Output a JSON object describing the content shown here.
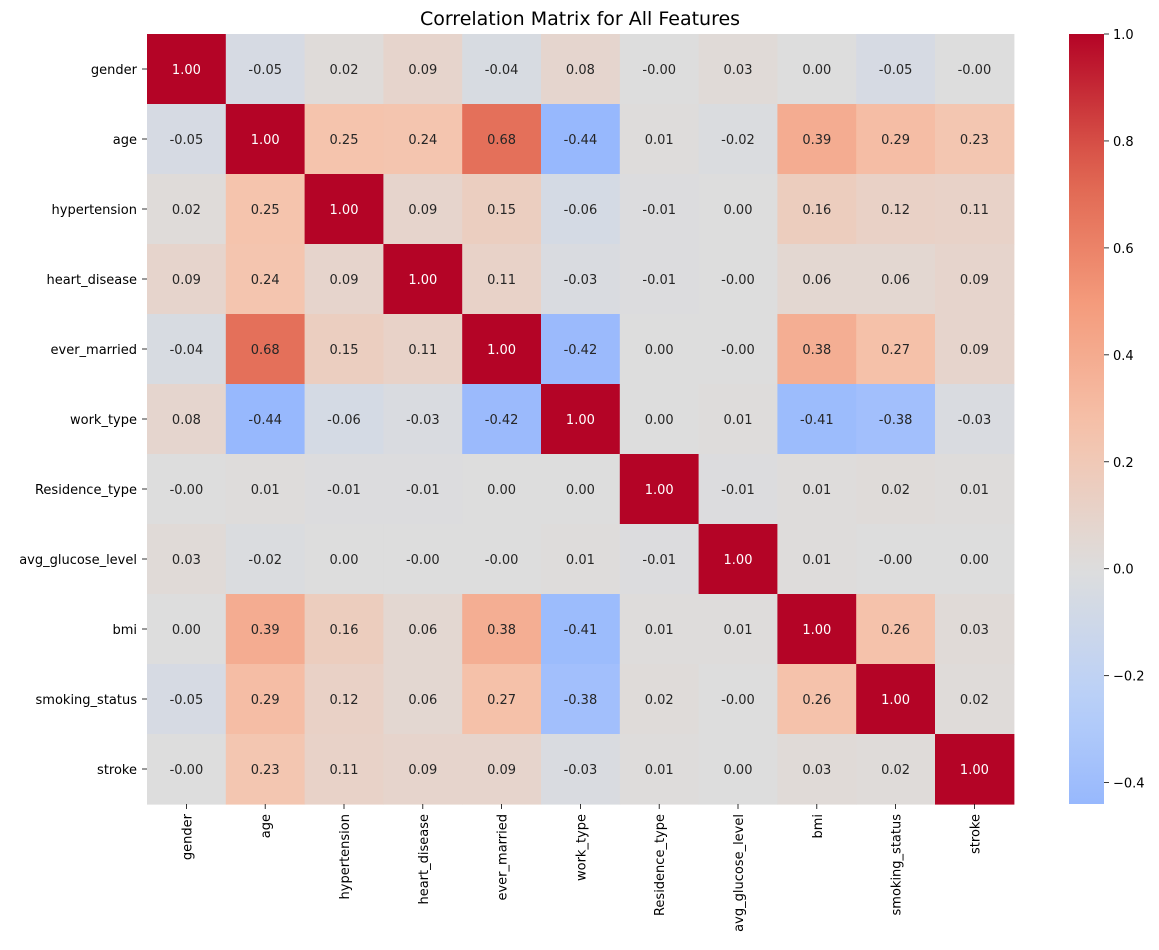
{
  "chart_data": {
    "type": "heatmap",
    "title": "Correlation Matrix for All Features",
    "xlabel": "",
    "ylabel": "",
    "labels": [
      "gender",
      "age",
      "hypertension",
      "heart_disease",
      "ever_married",
      "work_type",
      "Residence_type",
      "avg_glucose_level",
      "bmi",
      "smoking_status",
      "stroke"
    ],
    "matrix": [
      [
        1.0,
        -0.05,
        0.02,
        0.09,
        -0.04,
        0.08,
        -0.0,
        0.03,
        0.0,
        -0.05,
        -0.0
      ],
      [
        -0.05,
        1.0,
        0.25,
        0.24,
        0.68,
        -0.44,
        0.01,
        -0.02,
        0.39,
        0.29,
        0.23
      ],
      [
        0.02,
        0.25,
        1.0,
        0.09,
        0.15,
        -0.06,
        -0.01,
        0.0,
        0.16,
        0.12,
        0.11
      ],
      [
        0.09,
        0.24,
        0.09,
        1.0,
        0.11,
        -0.03,
        -0.01,
        -0.0,
        0.06,
        0.06,
        0.09
      ],
      [
        -0.04,
        0.68,
        0.15,
        0.11,
        1.0,
        -0.42,
        0.0,
        -0.0,
        0.38,
        0.27,
        0.09
      ],
      [
        0.08,
        -0.44,
        -0.06,
        -0.03,
        -0.42,
        1.0,
        0.0,
        0.01,
        -0.41,
        -0.38,
        -0.03
      ],
      [
        -0.0,
        0.01,
        -0.01,
        -0.01,
        0.0,
        0.0,
        1.0,
        -0.01,
        0.01,
        0.02,
        0.01
      ],
      [
        0.03,
        -0.02,
        0.0,
        -0.0,
        -0.0,
        0.01,
        -0.01,
        1.0,
        0.01,
        -0.0,
        0.0
      ],
      [
        0.0,
        0.39,
        0.16,
        0.06,
        0.38,
        -0.41,
        0.01,
        0.01,
        1.0,
        0.26,
        0.03
      ],
      [
        -0.05,
        0.29,
        0.12,
        0.06,
        0.27,
        -0.38,
        0.02,
        -0.0,
        0.26,
        1.0,
        0.02
      ],
      [
        -0.0,
        0.23,
        0.11,
        0.09,
        0.09,
        -0.03,
        0.01,
        0.0,
        0.03,
        0.02,
        1.0
      ]
    ],
    "value_format": "2 decimals",
    "colormap": "coolwarm",
    "color_center": 0.0,
    "color_range": [
      -0.44,
      1.0
    ],
    "colorbar_ticks": [
      "1.0",
      "0.8",
      "0.6",
      "0.4",
      "0.2",
      "0.0",
      "−0.2",
      "−0.4"
    ],
    "colorbar_tick_values": [
      1.0,
      0.8,
      0.6,
      0.4,
      0.2,
      0.0,
      -0.2,
      -0.4
    ]
  }
}
